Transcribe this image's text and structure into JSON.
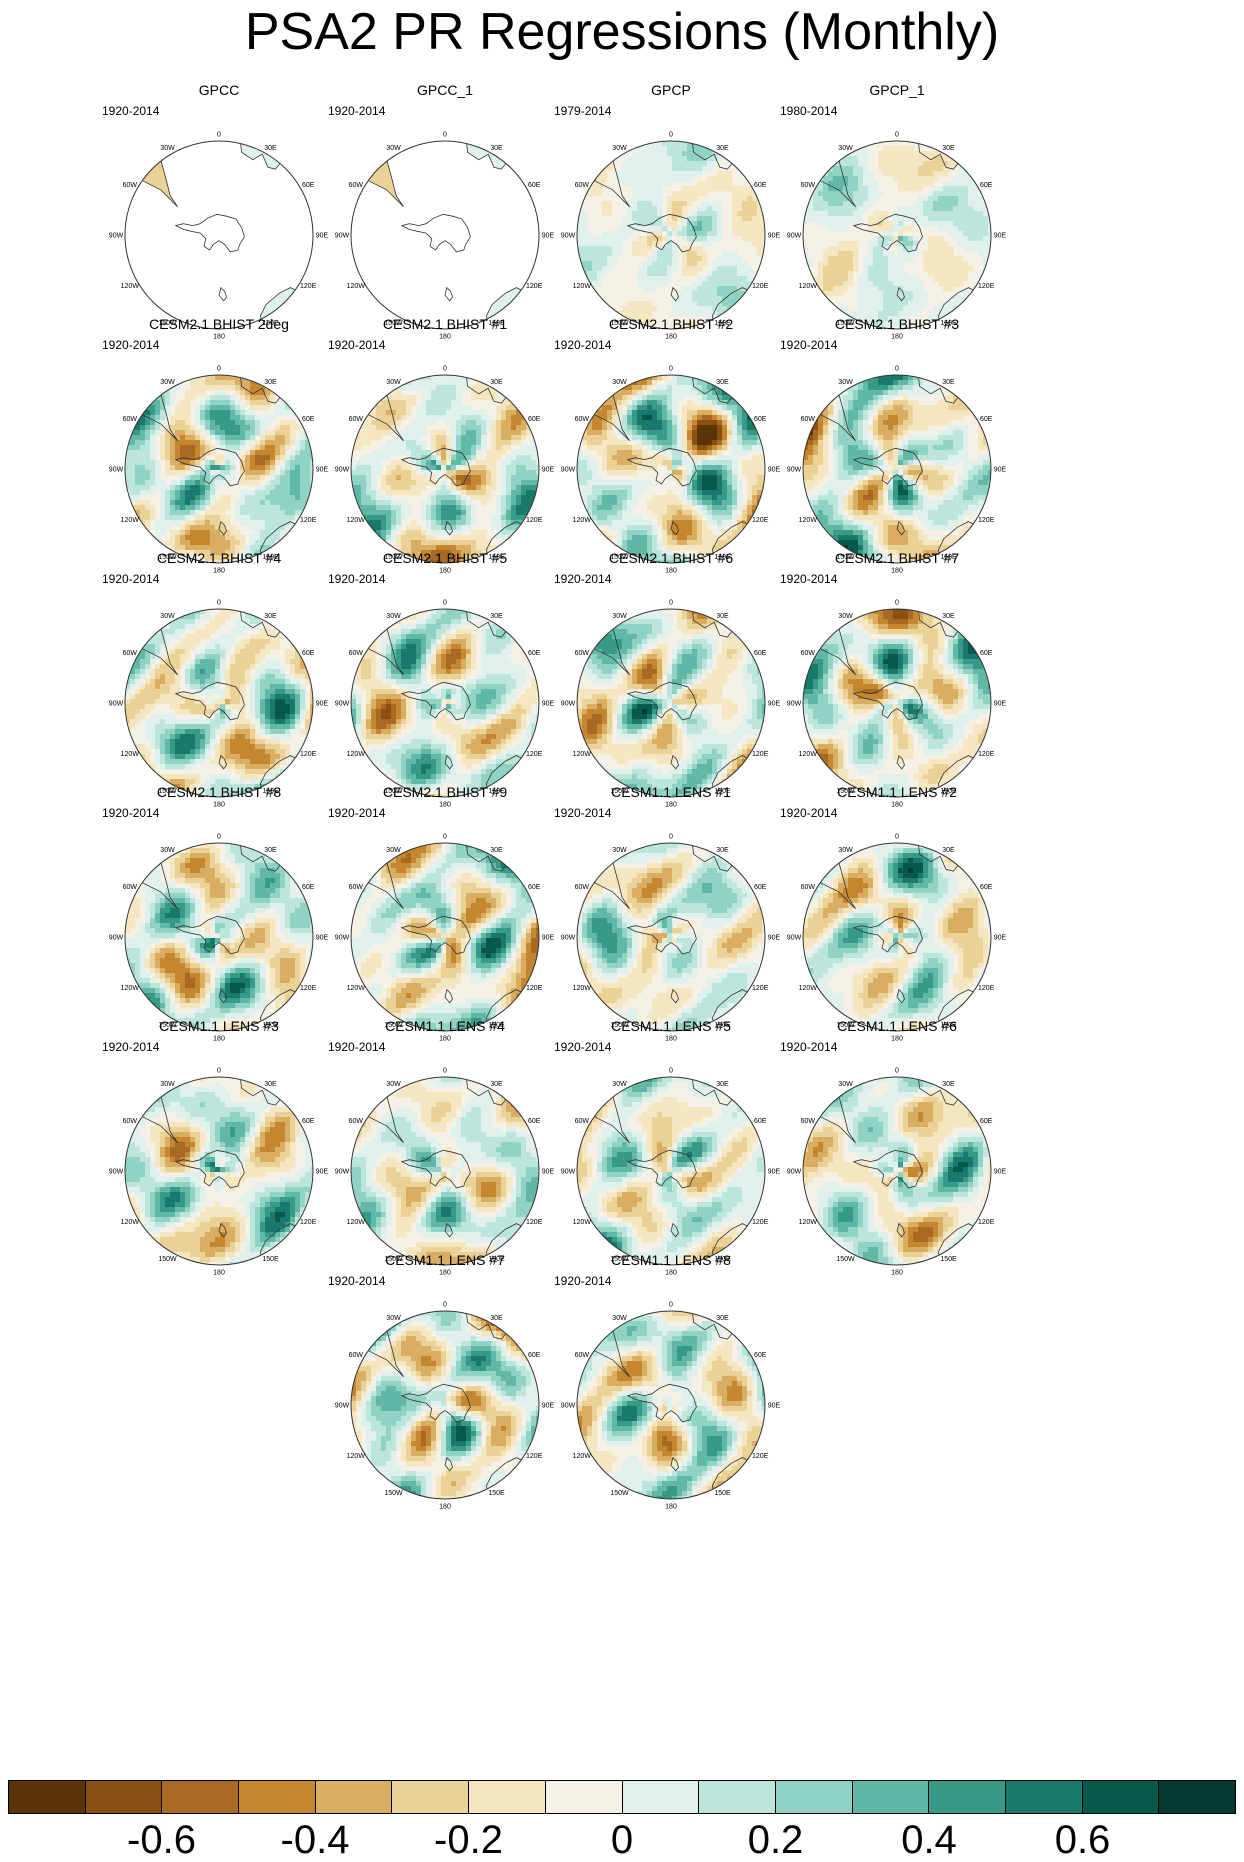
{
  "title": "PSA2 PR Regressions (Monthly)",
  "lon_labels": [
    "0",
    "30E",
    "60E",
    "90E",
    "120E",
    "150E",
    "180",
    "150W",
    "120W",
    "90W",
    "60W",
    "30W"
  ],
  "panels": [
    {
      "title": "GPCC",
      "years": "1920-2014",
      "seed": 3,
      "coverage": "land"
    },
    {
      "title": "GPCC_1",
      "years": "1920-2014",
      "seed": 5,
      "coverage": "land"
    },
    {
      "title": "GPCP",
      "years": "1979-2014",
      "seed": 7,
      "coverage": "full",
      "amp": 0.45
    },
    {
      "title": "GPCP_1",
      "years": "1980-2014",
      "seed": 9,
      "coverage": "full",
      "amp": 0.45
    },
    {
      "title": "CESM2.1 BHIST 2deg",
      "years": "1920-2014",
      "seed": 11,
      "coverage": "full",
      "amp": 1.0
    },
    {
      "title": "CESM2.1 BHIST #1",
      "years": "1920-2014",
      "seed": 13,
      "coverage": "full",
      "amp": 0.85
    },
    {
      "title": "CESM2.1 BHIST #2",
      "years": "1920-2014",
      "seed": 17,
      "coverage": "full",
      "amp": 1.0
    },
    {
      "title": "CESM2.1 BHIST #3",
      "years": "1920-2014",
      "seed": 19,
      "coverage": "full",
      "amp": 0.85
    },
    {
      "title": "CESM2.1 BHIST #4",
      "years": "1920-2014",
      "seed": 23,
      "coverage": "full",
      "amp": 0.95
    },
    {
      "title": "CESM2.1 BHIST #5",
      "years": "1920-2014",
      "seed": 29,
      "coverage": "full",
      "amp": 0.85
    },
    {
      "title": "CESM2.1 BHIST #6",
      "years": "1920-2014",
      "seed": 31,
      "coverage": "full",
      "amp": 0.8
    },
    {
      "title": "CESM2.1 BHIST #7",
      "years": "1920-2014",
      "seed": 37,
      "coverage": "full",
      "amp": 0.9
    },
    {
      "title": "CESM2.1 BHIST #8",
      "years": "1920-2014",
      "seed": 41,
      "coverage": "full",
      "amp": 0.85
    },
    {
      "title": "CESM2.1 BHIST #9",
      "years": "1920-2014",
      "seed": 43,
      "coverage": "full",
      "amp": 0.95
    },
    {
      "title": "CESM1.1 LENS #1",
      "years": "1920-2014",
      "seed": 47,
      "coverage": "full",
      "amp": 0.75
    },
    {
      "title": "CESM1.1 LENS #2",
      "years": "1920-2014",
      "seed": 53,
      "coverage": "full",
      "amp": 0.8
    },
    {
      "title": "CESM1.1 LENS #3",
      "years": "1920-2014",
      "seed": 59,
      "coverage": "full",
      "amp": 0.8
    },
    {
      "title": "CESM1.1 LENS #4",
      "years": "1920-2014",
      "seed": 61,
      "coverage": "full",
      "amp": 0.75
    },
    {
      "title": "CESM1.1 LENS #5",
      "years": "1920-2014",
      "seed": 67,
      "coverage": "full",
      "amp": 0.8
    },
    {
      "title": "CESM1.1 LENS #6",
      "years": "1920-2014",
      "seed": 71,
      "coverage": "full",
      "amp": 0.8
    },
    {
      "title": "CESM1.1 LENS #7",
      "years": "1920-2014",
      "seed": 73,
      "coverage": "full",
      "amp": 0.9
    },
    {
      "title": "CESM1.1 LENS #8",
      "years": "1920-2014",
      "seed": 79,
      "coverage": "full",
      "amp": 0.8
    }
  ],
  "colorbar": {
    "colors": [
      "#5b3408",
      "#8a5012",
      "#a86a22",
      "#c4862f",
      "#d9ae62",
      "#ead196",
      "#f5e6c2",
      "#f5f1e6",
      "#e0f0ec",
      "#bce5dc",
      "#90d3c4",
      "#62b8a7",
      "#379a89",
      "#19796a",
      "#07594c",
      "#023a30"
    ],
    "levels": [
      -0.7,
      -0.6,
      -0.5,
      -0.4,
      -0.3,
      -0.2,
      -0.1,
      0,
      0.1,
      0.2,
      0.3,
      0.4,
      0.5,
      0.6,
      0.7
    ],
    "labels": [
      {
        "text": "-0.6",
        "value": -0.6
      },
      {
        "text": "-0.4",
        "value": -0.4
      },
      {
        "text": "-0.2",
        "value": -0.2
      },
      {
        "text": "0",
        "value": 0
      },
      {
        "text": "0.2",
        "value": 0.2
      },
      {
        "text": "0.4",
        "value": 0.4
      },
      {
        "text": "0.6",
        "value": 0.6
      }
    ]
  }
}
